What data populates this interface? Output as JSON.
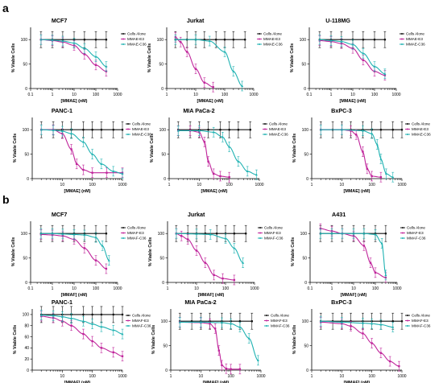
{
  "panel_labels": [
    "a",
    "b"
  ],
  "colors": {
    "cells_alone": "#111111",
    "e3": "#c0259b",
    "c36": "#1fb2b2"
  },
  "chart_data": [
    {
      "type": "line",
      "panel": "a",
      "title": "MCF7",
      "xlabel": "[MMAE] (nM)",
      "ylabel": "% Viable Cells",
      "x_scale": "log",
      "xlim": [
        0.1,
        1000
      ],
      "x_ticks": [
        "0.1",
        "1",
        "10",
        "100",
        "1000"
      ],
      "ylim": [
        0,
        125
      ],
      "y_ticks": [
        "0",
        "50",
        "100"
      ],
      "series": [
        {
          "name": "Cells Alone",
          "x": [
            0.3,
            1,
            3,
            10,
            30,
            100,
            300
          ],
          "y": [
            100,
            100,
            100,
            100,
            100,
            100,
            100
          ]
        },
        {
          "name": "MMAE-E3",
          "x": [
            0.3,
            1,
            3,
            10,
            30,
            100,
            300
          ],
          "y": [
            100,
            98,
            95,
            88,
            70,
            48,
            35
          ]
        },
        {
          "name": "MMAE-C36",
          "x": [
            0.3,
            1,
            3,
            10,
            30,
            100,
            300
          ],
          "y": [
            100,
            99,
            97,
            93,
            82,
            65,
            45
          ]
        }
      ]
    },
    {
      "type": "line",
      "panel": "a",
      "title": "Jurkat",
      "xlabel": "[MMAE] (nM)",
      "ylabel": "% Viable Cells",
      "x_scale": "log",
      "xlim": [
        1,
        1000
      ],
      "x_ticks": [
        "1",
        "10",
        "100",
        "1000"
      ],
      "ylim": [
        0,
        125
      ],
      "y_ticks": [
        "0",
        "50",
        "100"
      ],
      "series": [
        {
          "name": "Cells Alone",
          "x": [
            2,
            5,
            10,
            20,
            50,
            100,
            200,
            500
          ],
          "y": [
            100,
            100,
            100,
            100,
            100,
            100,
            100,
            100
          ]
        },
        {
          "name": "MMAE-E3",
          "x": [
            2,
            3,
            5,
            10,
            20,
            40
          ],
          "y": [
            105,
            95,
            75,
            40,
            12,
            3
          ]
        },
        {
          "name": "MMAE-C36",
          "x": [
            2,
            10,
            30,
            100,
            200,
            400
          ],
          "y": [
            100,
            100,
            97,
            75,
            35,
            5
          ]
        }
      ]
    },
    {
      "type": "line",
      "panel": "a",
      "title": "U-118MG",
      "xlabel": "[MMAE] (nM)",
      "ylabel": "% Viable Cells",
      "x_scale": "log",
      "xlim": [
        0.1,
        1000
      ],
      "x_ticks": [
        "0.1",
        "1",
        "10",
        "100",
        "1000"
      ],
      "ylim": [
        0,
        125
      ],
      "y_ticks": [
        "0",
        "50",
        "100"
      ],
      "series": [
        {
          "name": "Cells Alone",
          "x": [
            0.3,
            1,
            3,
            10,
            30,
            100,
            300
          ],
          "y": [
            100,
            100,
            100,
            100,
            100,
            100,
            100
          ]
        },
        {
          "name": "MMAE-E3",
          "x": [
            0.3,
            1,
            3,
            10,
            30,
            100,
            300
          ],
          "y": [
            98,
            96,
            92,
            82,
            58,
            35,
            27
          ]
        },
        {
          "name": "MMAE-C36",
          "x": [
            0.3,
            1,
            3,
            10,
            30,
            100,
            300
          ],
          "y": [
            100,
            98,
            96,
            90,
            72,
            45,
            30
          ]
        }
      ]
    },
    {
      "type": "line",
      "panel": "a",
      "title": "PANC-1",
      "xlabel": "[MMAE] (nM)",
      "ylabel": "% Viable Cells",
      "x_scale": "log",
      "xlim": [
        1,
        1000
      ],
      "x_ticks": [
        "10",
        "100",
        "1000"
      ],
      "ylim": [
        0,
        125
      ],
      "y_ticks": [
        "0",
        "50",
        "100"
      ],
      "series": [
        {
          "name": "Cells Alone",
          "x": [
            2,
            5,
            10,
            20,
            50,
            100,
            200,
            500,
            1000
          ],
          "y": [
            100,
            100,
            100,
            100,
            100,
            100,
            100,
            100,
            100
          ]
        },
        {
          "name": "MMAE-E3",
          "x": [
            2,
            5,
            10,
            20,
            30,
            50,
            100,
            300,
            1000
          ],
          "y": [
            100,
            100,
            92,
            60,
            30,
            18,
            12,
            12,
            12
          ]
        },
        {
          "name": "MMAE-C36",
          "x": [
            2,
            5,
            10,
            20,
            50,
            100,
            200,
            500,
            1000
          ],
          "y": [
            100,
            99,
            97,
            92,
            75,
            50,
            30,
            15,
            10
          ]
        }
      ]
    },
    {
      "type": "line",
      "panel": "a",
      "title": "MIA PaCa-2",
      "xlabel": "[MMAE] (nM)",
      "ylabel": "% Viable Cells",
      "x_scale": "log",
      "xlim": [
        1,
        1000
      ],
      "x_ticks": [
        "1",
        "10",
        "100",
        "1000"
      ],
      "ylim": [
        0,
        125
      ],
      "y_ticks": [
        "0",
        "50",
        "100"
      ],
      "series": [
        {
          "name": "Cells Alone",
          "x": [
            2,
            5,
            10,
            20,
            50,
            100,
            200,
            500
          ],
          "y": [
            100,
            100,
            100,
            100,
            100,
            100,
            100,
            100
          ]
        },
        {
          "name": "MMAE-E3",
          "x": [
            2,
            5,
            10,
            15,
            20,
            30,
            50,
            100
          ],
          "y": [
            98,
            98,
            95,
            75,
            35,
            10,
            5,
            3
          ]
        },
        {
          "name": "MMAE-C36",
          "x": [
            2,
            10,
            30,
            60,
            100,
            200,
            400,
            800
          ],
          "y": [
            98,
            98,
            95,
            85,
            65,
            35,
            15,
            8
          ]
        }
      ]
    },
    {
      "type": "line",
      "panel": "a",
      "title": "BxPC-3",
      "xlabel": "[MMAE] (nM)",
      "ylabel": "% Viable Cells",
      "x_scale": "log",
      "xlim": [
        1,
        1000
      ],
      "x_ticks": [
        "1",
        "10",
        "100",
        "1000"
      ],
      "ylim": [
        0,
        125
      ],
      "y_ticks": [
        "0",
        "50",
        "100"
      ],
      "series": [
        {
          "name": "Cells Alone",
          "x": [
            2,
            5,
            10,
            20,
            50,
            100,
            200,
            500,
            1000
          ],
          "y": [
            100,
            100,
            100,
            100,
            100,
            100,
            100,
            100,
            100
          ]
        },
        {
          "name": "MMAE-E3",
          "x": [
            2,
            10,
            20,
            30,
            50,
            70,
            100,
            200
          ],
          "y": [
            100,
            100,
            98,
            90,
            55,
            20,
            5,
            3
          ]
        },
        {
          "name": "MMAE-C36",
          "x": [
            2,
            10,
            50,
            100,
            150,
            200,
            300,
            500
          ],
          "y": [
            100,
            100,
            98,
            92,
            70,
            40,
            10,
            3
          ]
        }
      ]
    },
    {
      "type": "line",
      "panel": "b",
      "title": "MCF7",
      "xlabel": "[MMAF] (nM)",
      "ylabel": "% Viable Cells",
      "x_scale": "log",
      "xlim": [
        0.1,
        1000
      ],
      "x_ticks": [
        "0.1",
        "1",
        "10",
        "100",
        "1000"
      ],
      "ylim": [
        0,
        125
      ],
      "y_ticks": [
        "0",
        "50",
        "100"
      ],
      "series": [
        {
          "name": "Cells Alone",
          "x": [
            0.3,
            1,
            3,
            10,
            30,
            100,
            300
          ],
          "y": [
            100,
            100,
            100,
            100,
            100,
            100,
            100
          ]
        },
        {
          "name": "MMAF-E3",
          "x": [
            0.3,
            1,
            3,
            10,
            30,
            100,
            300
          ],
          "y": [
            98,
            97,
            95,
            88,
            70,
            45,
            28
          ]
        },
        {
          "name": "MMAF-C36",
          "x": [
            0.3,
            1,
            3,
            10,
            30,
            100,
            200,
            400
          ],
          "y": [
            100,
            100,
            99,
            98,
            97,
            92,
            75,
            45
          ]
        }
      ]
    },
    {
      "type": "line",
      "panel": "b",
      "title": "Jurkat",
      "xlabel": "[MMAF] (nM)",
      "ylabel": "% Viable Cells",
      "x_scale": "log",
      "xlim": [
        1,
        1000
      ],
      "x_ticks": [
        "1",
        "10",
        "100",
        "1000"
      ],
      "ylim": [
        0,
        125
      ],
      "y_ticks": [
        "0",
        "50",
        "100"
      ],
      "series": [
        {
          "name": "Cells Alone",
          "x": [
            2,
            5,
            10,
            20,
            50,
            100,
            200,
            500
          ],
          "y": [
            100,
            100,
            100,
            100,
            100,
            100,
            100,
            100
          ]
        },
        {
          "name": "MMAF-E3",
          "x": [
            2,
            3,
            5,
            10,
            20,
            40,
            80,
            200
          ],
          "y": [
            100,
            95,
            88,
            65,
            40,
            15,
            8,
            5
          ]
        },
        {
          "name": "MMAF-C36",
          "x": [
            2,
            10,
            30,
            100,
            200,
            400
          ],
          "y": [
            100,
            99,
            98,
            90,
            70,
            40
          ]
        }
      ]
    },
    {
      "type": "line",
      "panel": "b",
      "title": "A431",
      "xlabel": "[MMAF] (nM)",
      "ylabel": "% Viable Cells",
      "x_scale": "log",
      "xlim": [
        0.1,
        1000
      ],
      "x_ticks": [
        "0.1",
        "1",
        "10",
        "100",
        "1000"
      ],
      "ylim": [
        0,
        125
      ],
      "y_ticks": [
        "0",
        "50",
        "100"
      ],
      "series": [
        {
          "name": "Cells Alone",
          "x": [
            0.3,
            1,
            3,
            10,
            30,
            100,
            300
          ],
          "y": [
            100,
            100,
            100,
            100,
            100,
            100,
            100
          ]
        },
        {
          "name": "MMAF-E3",
          "x": [
            0.3,
            1,
            3,
            10,
            30,
            60,
            100,
            300
          ],
          "y": [
            110,
            105,
            100,
            95,
            75,
            40,
            20,
            10
          ]
        },
        {
          "name": "MMAF-C36",
          "x": [
            0.3,
            1,
            3,
            10,
            30,
            100,
            200,
            300
          ],
          "y": [
            100,
            100,
            100,
            100,
            100,
            98,
            80,
            15
          ]
        }
      ]
    },
    {
      "type": "line",
      "panel": "b",
      "title": "PANC-1",
      "xlabel": "[MMAF] (nM)",
      "ylabel": "% Viable Cells",
      "x_scale": "log",
      "xlim": [
        1,
        1000
      ],
      "x_ticks": [
        "10",
        "100",
        "1000"
      ],
      "ylim": [
        0,
        110
      ],
      "y_ticks": [
        "0",
        "20",
        "40",
        "60",
        "80",
        "100"
      ],
      "series": [
        {
          "name": "Cells Alone",
          "x": [
            2,
            5,
            10,
            20,
            50,
            100,
            200,
            500,
            1000
          ],
          "y": [
            100,
            100,
            100,
            100,
            100,
            100,
            100,
            100,
            100
          ]
        },
        {
          "name": "MMAF-E3",
          "x": [
            2,
            5,
            10,
            20,
            50,
            100,
            200,
            500,
            1000
          ],
          "y": [
            97,
            94,
            88,
            80,
            65,
            52,
            40,
            32,
            25
          ]
        },
        {
          "name": "MMAF-C36",
          "x": [
            2,
            5,
            10,
            20,
            50,
            100,
            200,
            500,
            1000
          ],
          "y": [
            99,
            98,
            96,
            93,
            88,
            83,
            78,
            72,
            65
          ]
        }
      ]
    },
    {
      "type": "line",
      "panel": "b",
      "title": "MIA PaCa-2",
      "xlabel": "[MMAF] (nM)",
      "ylabel": "% Viable Cells",
      "x_scale": "log",
      "xlim": [
        1,
        1000
      ],
      "x_ticks": [
        "1",
        "10",
        "100",
        "1000"
      ],
      "ylim": [
        0,
        125
      ],
      "y_ticks": [
        "0",
        "50",
        "100"
      ],
      "series": [
        {
          "name": "Cells Alone",
          "x": [
            2,
            5,
            10,
            20,
            50,
            100,
            200,
            500
          ],
          "y": [
            100,
            100,
            100,
            100,
            100,
            100,
            100,
            100
          ]
        },
        {
          "name": "MMAF-E3",
          "x": [
            2,
            10,
            20,
            30,
            40,
            50,
            70,
            100,
            200
          ],
          "y": [
            98,
            97,
            95,
            85,
            40,
            10,
            3,
            2,
            2
          ]
        },
        {
          "name": "MMAF-C36",
          "x": [
            2,
            10,
            50,
            100,
            200,
            400,
            800
          ],
          "y": [
            98,
            98,
            97,
            95,
            88,
            65,
            20
          ]
        }
      ]
    },
    {
      "type": "line",
      "panel": "b",
      "title": "BxPC-3",
      "xlabel": "[MMAF] (nM)",
      "ylabel": "% Viable Cells",
      "x_scale": "log",
      "xlim": [
        1,
        1000
      ],
      "x_ticks": [
        "1",
        "10",
        "100",
        "1000"
      ],
      "ylim": [
        0,
        125
      ],
      "y_ticks": [
        "0",
        "50",
        "100"
      ],
      "series": [
        {
          "name": "Cells Alone",
          "x": [
            2,
            5,
            10,
            20,
            50,
            100,
            200,
            500,
            1000
          ],
          "y": [
            100,
            100,
            100,
            100,
            100,
            100,
            100,
            100,
            100
          ]
        },
        {
          "name": "MMAF-E3",
          "x": [
            2,
            10,
            20,
            50,
            100,
            200,
            400,
            800
          ],
          "y": [
            98,
            95,
            90,
            75,
            55,
            35,
            18,
            8
          ]
        },
        {
          "name": "MMAF-C36",
          "x": [
            2,
            10,
            50,
            100,
            200,
            500
          ],
          "y": [
            100,
            98,
            96,
            95,
            93,
            88
          ]
        }
      ]
    }
  ]
}
